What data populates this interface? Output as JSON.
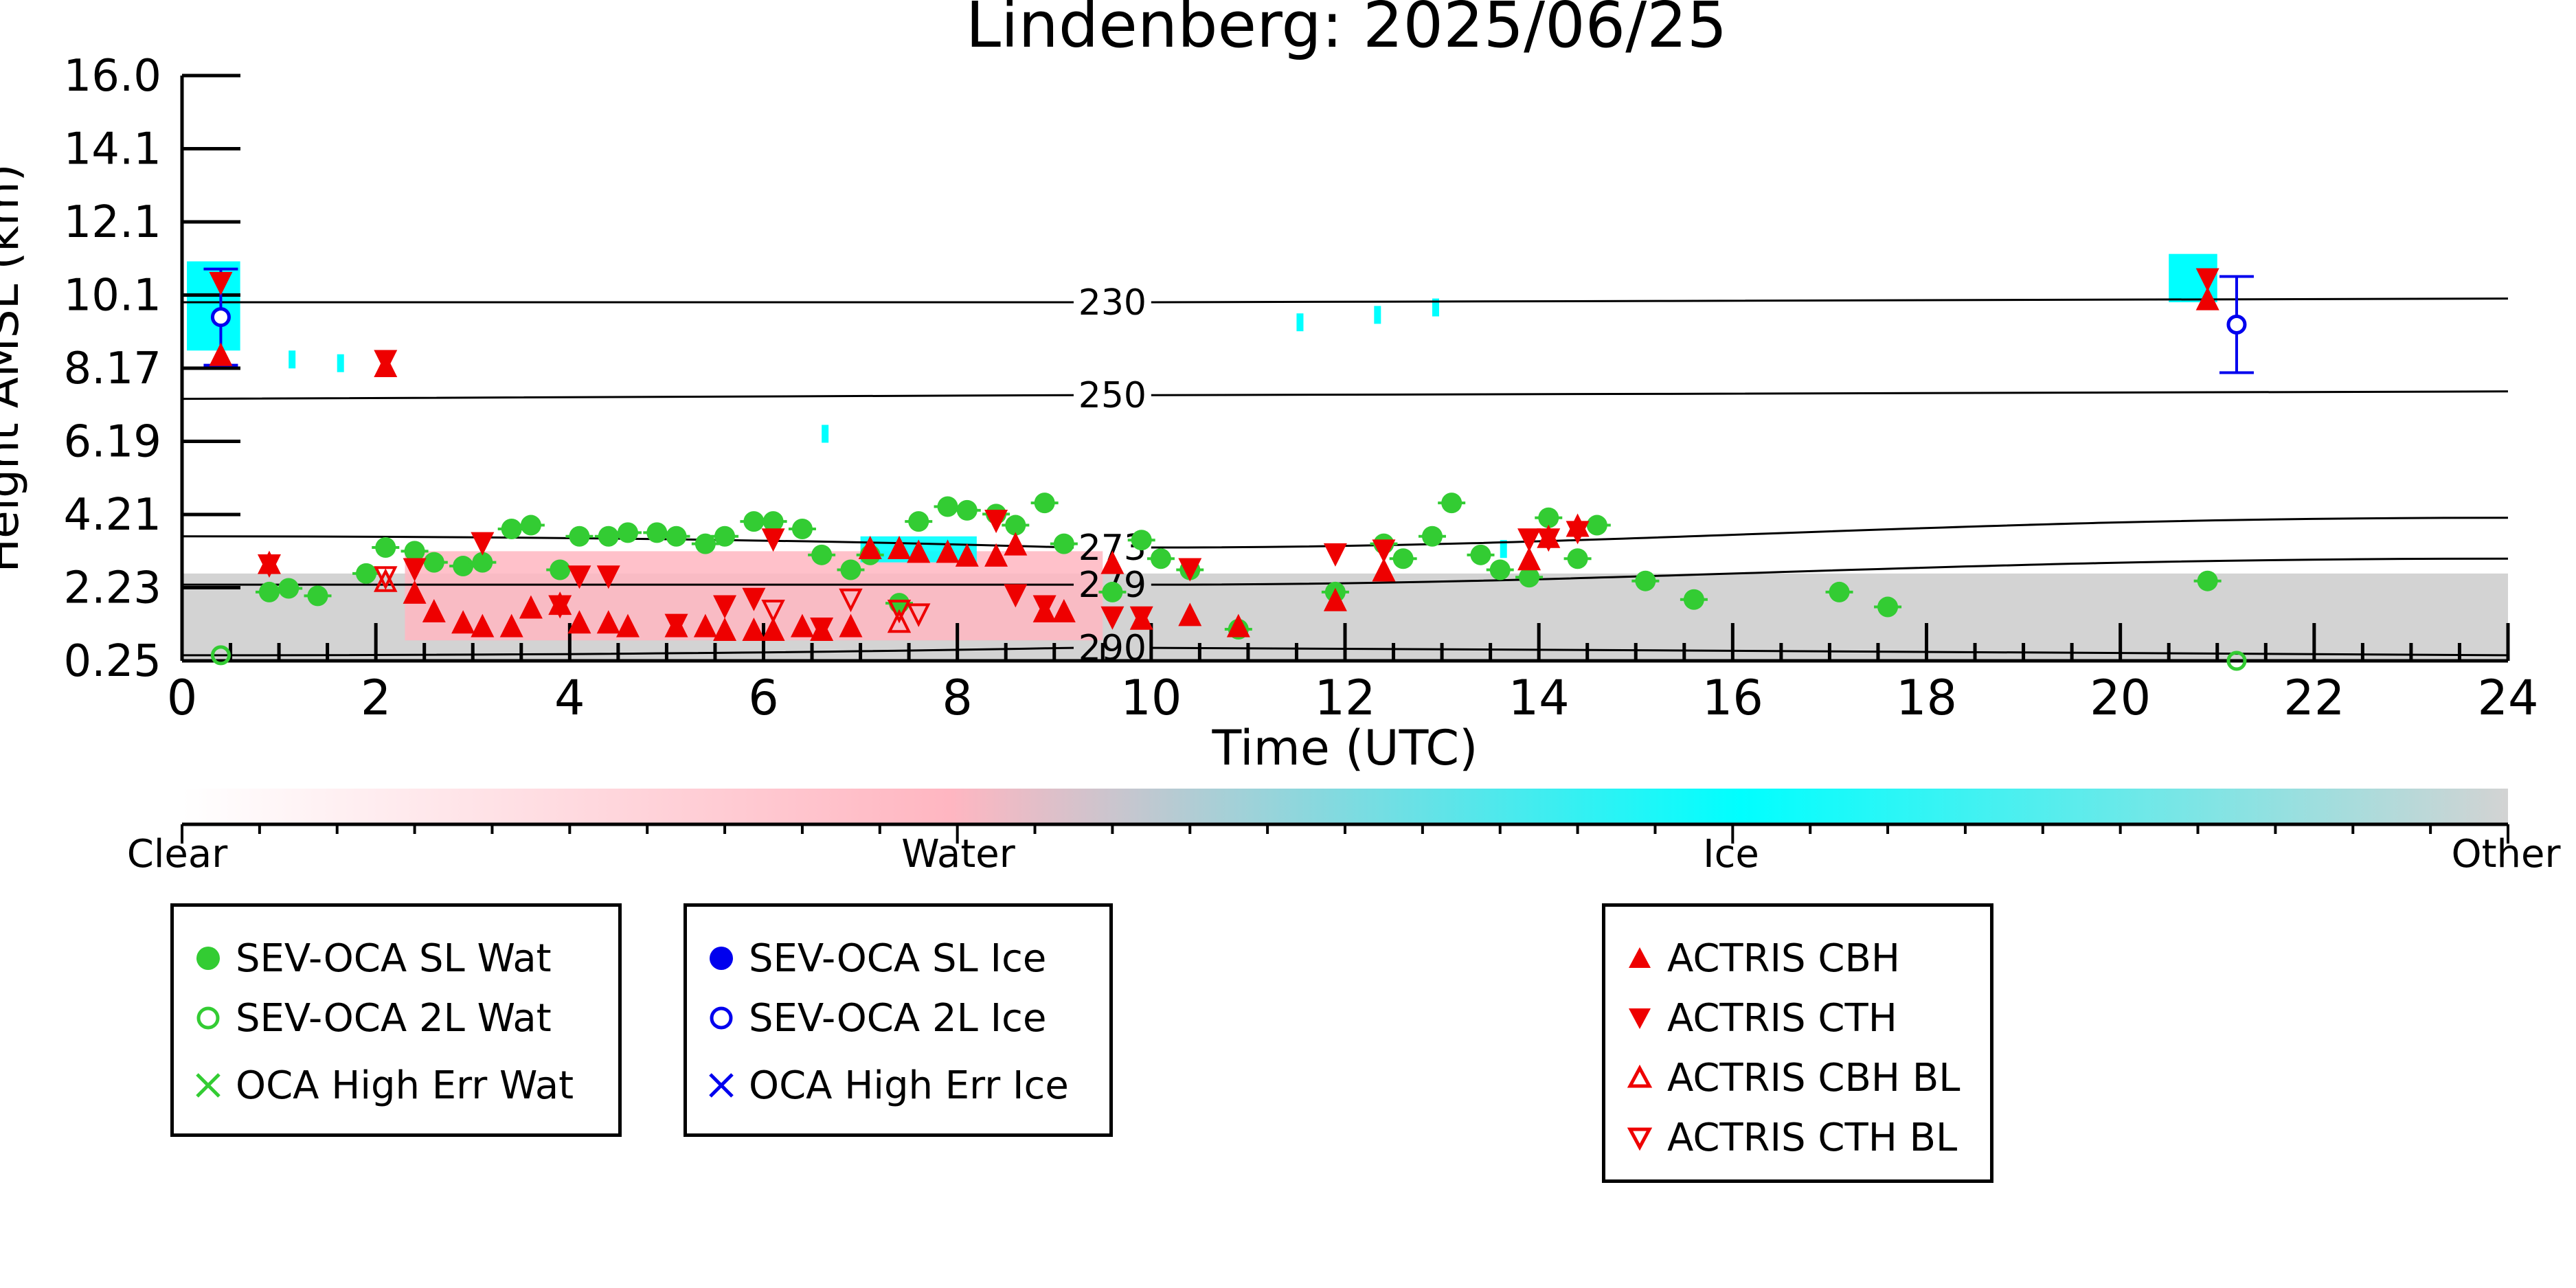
{
  "chart_data": {
    "type": "scatter",
    "title": "Lindenberg: 2025/06/25",
    "xlabel": "Time (UTC)",
    "ylabel": "Height AMSL (km)",
    "xlim": [
      0,
      24
    ],
    "xticks": [
      0,
      2,
      4,
      6,
      8,
      10,
      12,
      14,
      16,
      18,
      20,
      22,
      24
    ],
    "yticks": [
      "16.0",
      "14.1",
      "12.1",
      "10.1",
      "8.17",
      "6.19",
      "4.21",
      "2.23",
      "0.25"
    ],
    "ylim": [
      0.25,
      16.0
    ],
    "isotherms": [
      {
        "label": "230",
        "y_start": 9.9,
        "y_label": 9.9,
        "y_end": 10.0
      },
      {
        "label": "250",
        "y_start": 7.3,
        "y_label": 7.4,
        "y_end": 7.5
      },
      {
        "label": "273",
        "y_start": 3.6,
        "y_label": 3.3,
        "y_end": 4.1
      },
      {
        "label": "279",
        "y_start": 2.3,
        "y_label": 2.3,
        "y_end": 3.0
      },
      {
        "label": "290",
        "y_start": 0.4,
        "y_label": 0.6,
        "y_end": 0.4
      }
    ],
    "colorbar": {
      "labels": [
        "Clear",
        "Water",
        "Ice",
        "Other"
      ],
      "colors": [
        "#ffffff",
        "#ffb6c1",
        "#00ffff",
        "#d3d3d3"
      ]
    },
    "series": [
      {
        "name": "SEV-OCA SL Wat",
        "color": "#33cc33",
        "x": [
          0.9,
          1.1,
          1.4,
          1.9,
          2.1,
          2.4,
          2.6,
          2.9,
          3.1,
          3.4,
          3.6,
          3.9,
          4.1,
          4.4,
          4.6,
          4.9,
          5.1,
          5.4,
          5.6,
          5.9,
          6.1,
          6.4,
          6.6,
          6.9,
          7.1,
          7.4,
          7.6,
          7.9,
          8.1,
          8.4,
          8.6,
          8.9,
          9.1,
          9.6,
          9.9,
          10.1,
          10.4,
          10.9,
          11.9,
          12.4,
          12.6,
          12.9,
          13.1,
          13.4,
          13.6,
          13.9,
          14.1,
          14.4,
          14.6,
          15.1,
          15.6,
          17.1,
          17.6,
          20.9
        ],
        "y": [
          2.1,
          2.2,
          2.0,
          2.6,
          3.3,
          3.2,
          2.9,
          2.8,
          2.9,
          3.8,
          3.9,
          2.7,
          3.6,
          3.6,
          3.7,
          3.7,
          3.6,
          3.4,
          3.6,
          4.0,
          4.0,
          3.8,
          3.1,
          2.7,
          3.1,
          1.8,
          4.0,
          4.4,
          4.3,
          4.2,
          3.9,
          4.5,
          3.4,
          2.1,
          3.5,
          3.0,
          2.7,
          1.1,
          2.1,
          3.4,
          3.0,
          3.6,
          4.5,
          3.1,
          2.7,
          2.5,
          4.1,
          3.0,
          3.9,
          2.4,
          1.9,
          2.1,
          1.7,
          2.4
        ]
      },
      {
        "name": "SEV-OCA 2L Wat",
        "color": "#33cc33",
        "x": [
          0.4,
          21.2
        ],
        "y": [
          0.4,
          0.25
        ]
      },
      {
        "name": "OCA High Err Wat",
        "color": "#33cc33",
        "x": [],
        "y": []
      },
      {
        "name": "SEV-OCA SL Ice",
        "color": "#0000ee",
        "x": [],
        "y": []
      },
      {
        "name": "SEV-OCA 2L Ice",
        "color": "#0000ee",
        "x": [
          0.4,
          21.2
        ],
        "y": [
          9.5,
          9.3
        ]
      },
      {
        "name": "OCA High Err Ice",
        "color": "#0000ee",
        "x": [],
        "y": []
      },
      {
        "name": "ACTRIS CBH",
        "color": "#ee0000",
        "x": [
          0.4,
          0.9,
          2.1,
          2.4,
          2.6,
          2.9,
          3.1,
          3.4,
          3.6,
          3.9,
          4.1,
          4.4,
          4.6,
          5.1,
          5.4,
          5.6,
          5.9,
          6.1,
          6.4,
          6.6,
          6.9,
          7.1,
          7.4,
          7.6,
          7.9,
          8.1,
          8.4,
          8.6,
          8.9,
          9.1,
          9.6,
          9.9,
          10.4,
          10.9,
          11.9,
          12.4,
          13.9,
          14.1,
          14.4,
          20.9
        ],
        "y": [
          8.5,
          2.9,
          8.2,
          2.1,
          1.6,
          1.3,
          1.2,
          1.2,
          1.7,
          1.8,
          1.3,
          1.3,
          1.2,
          1.2,
          1.2,
          1.1,
          1.1,
          1.1,
          1.2,
          1.1,
          1.2,
          3.3,
          3.3,
          3.2,
          3.2,
          3.1,
          3.1,
          3.4,
          1.6,
          1.6,
          2.9,
          1.4,
          1.5,
          1.2,
          1.9,
          2.7,
          3.0,
          3.6,
          3.9,
          10.0
        ]
      },
      {
        "name": "ACTRIS CTH",
        "color": "#ee0000",
        "x": [
          0.4,
          0.9,
          2.1,
          2.4,
          3.1,
          3.9,
          4.1,
          4.4,
          5.1,
          5.6,
          5.9,
          6.1,
          6.6,
          8.4,
          8.6,
          8.9,
          9.6,
          9.9,
          10.4,
          11.9,
          12.4,
          13.9,
          14.1,
          14.4,
          20.9
        ],
        "y": [
          10.4,
          2.8,
          8.3,
          2.7,
          3.4,
          1.7,
          2.5,
          2.5,
          1.2,
          1.7,
          1.9,
          3.5,
          1.1,
          4.0,
          2.0,
          1.7,
          1.4,
          1.4,
          2.7,
          3.1,
          3.2,
          3.5,
          3.5,
          3.7,
          10.5
        ]
      },
      {
        "name": "ACTRIS CBH BL",
        "color": "#ee0000",
        "x": [
          2.1,
          7.4
        ],
        "y": [
          2.4,
          1.3
        ],
        "hollow": true
      },
      {
        "name": "ACTRIS CTH BL",
        "color": "#ee0000",
        "x": [
          2.1,
          6.1,
          6.9,
          7.4,
          7.6
        ],
        "y": [
          2.5,
          1.6,
          1.9,
          1.6,
          1.5
        ],
        "hollow": true
      }
    ],
    "legends": [
      {
        "box": 1,
        "items": [
          "SEV-OCA SL Wat",
          "SEV-OCA 2L Wat",
          "OCA High Err Wat"
        ]
      },
      {
        "box": 2,
        "items": [
          "SEV-OCA SL Ice",
          "SEV-OCA 2L Ice",
          "OCA High Err Ice"
        ]
      },
      {
        "box": 3,
        "items": [
          "ACTRIS CBH",
          "ACTRIS CTH",
          "ACTRIS CBH BL",
          "ACTRIS CTH BL"
        ]
      }
    ]
  }
}
